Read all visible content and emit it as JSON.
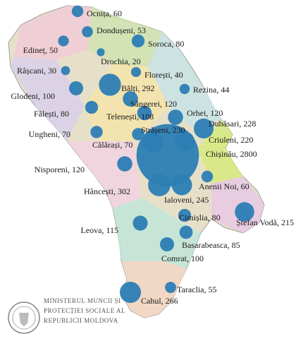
{
  "map": {
    "regions": [
      {
        "label": "Ocnița, 60",
        "value": 60
      },
      {
        "label": "Dondușeni, 53",
        "value": 53
      },
      {
        "label": "Edineț, 50",
        "value": 50
      },
      {
        "label": "Soroca, 80",
        "value": 80
      },
      {
        "label": "Drochia, 20",
        "value": 20
      },
      {
        "label": "Râșcani, 30",
        "value": 30
      },
      {
        "label": "Florești, 40",
        "value": 40
      },
      {
        "label": "Rezina, 44",
        "value": 44
      },
      {
        "label": "Bălți, 292",
        "value": 292
      },
      {
        "label": "Sângerei, 120",
        "value": 120
      },
      {
        "label": "Glodeni, 100",
        "value": 100
      },
      {
        "label": "Fălești, 80",
        "value": 80
      },
      {
        "label": "Telenești, 108",
        "value": 108
      },
      {
        "label": "Orhei, 120",
        "value": 120
      },
      {
        "label": "Dubăsari, 228",
        "value": 228
      },
      {
        "label": "Ungheni, 70",
        "value": 70
      },
      {
        "label": "Strășeni, 230",
        "value": 230
      },
      {
        "label": "Criuleni, 220",
        "value": 220
      },
      {
        "label": "Călărași, 70",
        "value": 70
      },
      {
        "label": "Chișinău, 2800",
        "value": 2800
      },
      {
        "label": "Nisporeni, 120",
        "value": 120
      },
      {
        "label": "Hâncești, 302",
        "value": 302
      },
      {
        "label": "Anenii Noi, 60",
        "value": 60
      },
      {
        "label": "Ialoveni, 245",
        "value": 245
      },
      {
        "label": "Ștefan Vodă, 215",
        "value": 215
      },
      {
        "label": "Cimișlia, 80",
        "value": 80
      },
      {
        "label": "Leova, 115",
        "value": 115
      },
      {
        "label": "Basarabeasca, 85",
        "value": 85
      },
      {
        "label": "Comrat, 100",
        "value": 100
      },
      {
        "label": "Taraclia, 55",
        "value": 55
      },
      {
        "label": "Cahul, 266",
        "value": 266
      }
    ],
    "footer": [
      "MINISTERUL MUNCII ȘI",
      "PROTECȚIEI SOCIALE AL",
      "REPUBLICII MOLDOVA"
    ]
  }
}
